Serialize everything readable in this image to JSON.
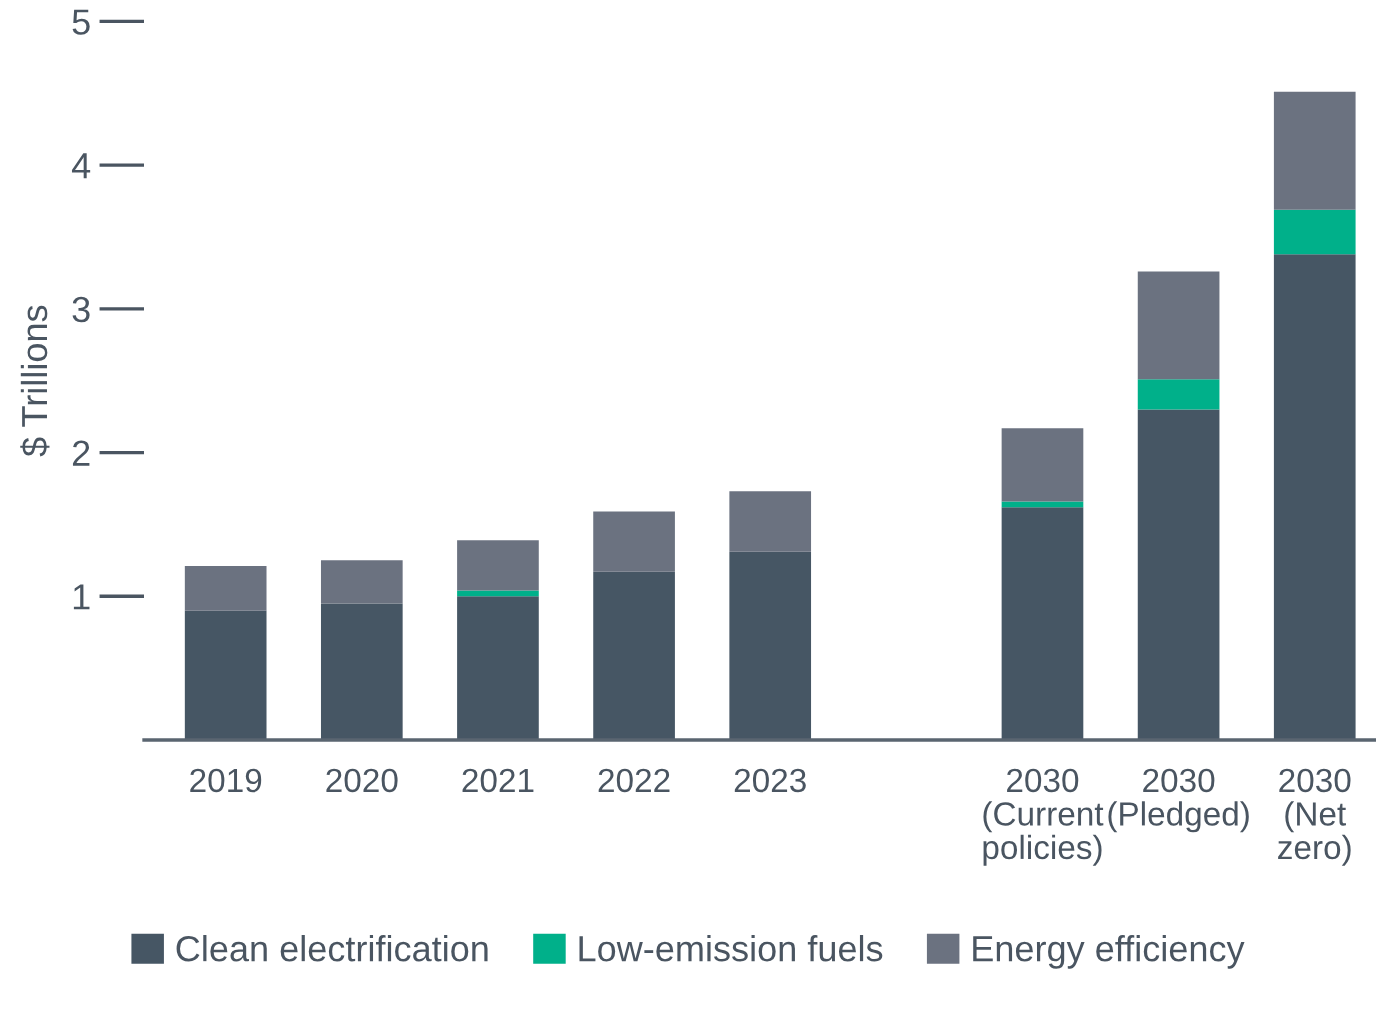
{
  "chart_data": {
    "type": "bar",
    "stacked": true,
    "ylabel": "$ Trillions",
    "categories": [
      "2019",
      "2020",
      "2021",
      "2022",
      "2023",
      null,
      "2030\n(Current\npolicies)",
      "2030\n(Pledged)",
      "2030\n(Net\nzero)"
    ],
    "series": [
      {
        "name": "Clean electrification",
        "color": "#465664",
        "values": [
          0.9,
          0.95,
          1.0,
          1.17,
          1.31,
          null,
          1.62,
          2.3,
          3.38
        ]
      },
      {
        "name": "Low-emission fuels",
        "color": "#00b08a",
        "values": [
          0,
          0,
          0.04,
          0,
          0,
          null,
          0.04,
          0.21,
          0.31
        ]
      },
      {
        "name": "Energy efficiency",
        "color": "#6b7280",
        "values": [
          0.31,
          0.3,
          0.35,
          0.42,
          0.42,
          null,
          0.51,
          0.75,
          0.82
        ]
      }
    ],
    "ylim": [
      0,
      5
    ],
    "yticks": [
      1,
      2,
      3,
      4,
      5
    ],
    "grid": false,
    "legend": "bottom"
  }
}
